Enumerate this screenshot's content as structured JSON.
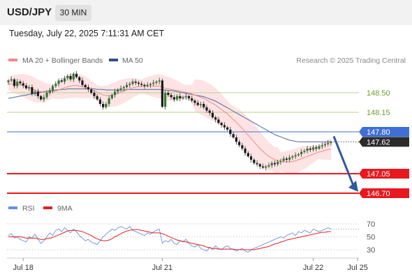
{
  "header": {
    "symbol": "USD/JPY",
    "timeframe": "30 MIN"
  },
  "datetime": "Tuesday, July 22, 2025 7:11:31 AM CET",
  "legend": {
    "ma20": "MA 20 + Bollinger Bands",
    "ma50": "MA 50",
    "research": "Research © 2025 Trading Central",
    "rsi": "RSI",
    "rsi_ma": "9MA"
  },
  "colors": {
    "ma20": "#f08a8a",
    "ma50": "#4a6aa0",
    "band_fill": "#fde3e3",
    "resistance": "#b5d68a",
    "current": "#3d6fd6",
    "support": "#e8191e",
    "candle": "#2e7a2e",
    "rsi": "#6a8ee0",
    "rsi_ma": "#e02020",
    "arrow": "#2f5a9e"
  },
  "chart_data": {
    "type": "candlestick",
    "instrument": "USD/JPY",
    "timeframe": "30 MIN",
    "ylim": [
      146.35,
      149.15
    ],
    "x_ticks": [
      "Jul 18",
      "Jul 21",
      "Jul 22",
      "Jul 25"
    ],
    "x_tick_index": [
      5,
      52,
      103,
      118
    ],
    "levels": {
      "resistance": [
        148.5,
        148.15
      ],
      "current": 147.8,
      "last_price": 147.62,
      "support": [
        147.05,
        146.7
      ]
    },
    "level_labels": [
      "148.50",
      "148.15",
      "147.80",
      "147.62",
      "147.05",
      "146.70"
    ],
    "close": [
      148.72,
      148.74,
      148.62,
      148.7,
      148.67,
      148.63,
      148.58,
      148.6,
      148.48,
      148.52,
      148.44,
      148.38,
      148.42,
      148.5,
      148.54,
      148.62,
      148.66,
      148.72,
      148.7,
      148.76,
      148.8,
      148.74,
      148.84,
      148.78,
      148.72,
      148.64,
      148.6,
      148.56,
      148.5,
      148.44,
      148.38,
      148.3,
      148.24,
      148.3,
      148.4,
      148.46,
      148.52,
      148.56,
      148.58,
      148.6,
      148.64,
      148.66,
      148.7,
      148.68,
      148.66,
      148.64,
      148.62,
      148.64,
      148.66,
      148.68,
      148.7,
      148.72,
      148.25,
      148.5,
      148.46,
      148.42,
      148.38,
      148.44,
      148.4,
      148.42,
      148.44,
      148.4,
      148.36,
      148.32,
      148.28,
      148.3,
      148.24,
      148.18,
      148.14,
      148.06,
      148.02,
      147.96,
      147.92,
      147.88,
      147.84,
      147.76,
      147.7,
      147.62,
      147.56,
      147.5,
      147.42,
      147.36,
      147.3,
      147.24,
      147.22,
      147.18,
      147.16,
      147.18,
      147.2,
      147.24,
      147.22,
      147.26,
      147.28,
      147.32,
      147.3,
      147.34,
      147.36,
      147.38,
      147.4,
      147.44,
      147.46,
      147.5,
      147.48,
      147.52,
      147.5,
      147.54,
      147.56,
      147.58,
      147.6,
      147.62
    ],
    "ma20": [
      148.66,
      148.66,
      148.66,
      148.65,
      148.64,
      148.63,
      148.61,
      148.59,
      148.57,
      148.55,
      148.53,
      148.52,
      148.51,
      148.51,
      148.51,
      148.52,
      148.53,
      148.55,
      148.57,
      148.59,
      148.61,
      148.62,
      148.63,
      148.63,
      148.62,
      148.61,
      148.6,
      148.58,
      148.56,
      148.54,
      148.51,
      148.48,
      148.46,
      148.45,
      148.45,
      148.46,
      148.47,
      148.49,
      148.51,
      148.53,
      148.55,
      148.57,
      148.59,
      148.6,
      148.61,
      148.61,
      148.62,
      148.62,
      148.62,
      148.62,
      148.62,
      148.62,
      148.6,
      148.58,
      148.57,
      148.56,
      148.55,
      148.54,
      148.53,
      148.52,
      148.51,
      148.5,
      148.48,
      148.46,
      148.44,
      148.42,
      148.4,
      148.37,
      148.34,
      148.31,
      148.28,
      148.24,
      148.2,
      148.16,
      148.12,
      148.07,
      148.02,
      147.97,
      147.92,
      147.86,
      147.8,
      147.74,
      147.68,
      147.62,
      147.56,
      147.5,
      147.45,
      147.4,
      147.36,
      147.33,
      147.3,
      147.28,
      147.27,
      147.26,
      147.26,
      147.26,
      147.27,
      147.28,
      147.3,
      147.32,
      147.34,
      147.36,
      147.38,
      147.4,
      147.42,
      147.44,
      147.45,
      147.47,
      147.48,
      147.49
    ],
    "ma50": [
      148.4,
      148.41,
      148.42,
      148.43,
      148.44,
      148.45,
      148.46,
      148.47,
      148.48,
      148.49,
      148.5,
      148.51,
      148.52,
      148.53,
      148.54,
      148.54,
      148.55,
      148.55,
      148.56,
      148.56,
      148.57,
      148.57,
      148.57,
      148.57,
      148.57,
      148.57,
      148.57,
      148.57,
      148.57,
      148.57,
      148.56,
      148.56,
      148.56,
      148.55,
      148.55,
      148.55,
      148.55,
      148.55,
      148.55,
      148.55,
      148.56,
      148.56,
      148.56,
      148.56,
      148.56,
      148.56,
      148.56,
      148.56,
      148.56,
      148.56,
      148.56,
      148.56,
      148.55,
      148.55,
      148.54,
      148.54,
      148.53,
      148.52,
      148.51,
      148.5,
      148.49,
      148.48,
      148.47,
      148.46,
      148.45,
      148.44,
      148.43,
      148.41,
      148.39,
      148.37,
      148.35,
      148.32,
      148.29,
      148.26,
      148.23,
      148.2,
      148.17,
      148.14,
      148.11,
      148.08,
      148.05,
      148.02,
      147.99,
      147.96,
      147.93,
      147.9,
      147.87,
      147.84,
      147.81,
      147.78,
      147.75,
      147.73,
      147.71,
      147.69,
      147.67,
      147.65,
      147.64,
      147.63,
      147.62,
      147.62,
      147.62,
      147.62,
      147.62,
      147.62,
      147.62,
      147.62,
      147.62,
      147.62,
      147.62,
      147.62
    ],
    "rsi": {
      "ylim": [
        20,
        80
      ],
      "ticks": [
        70,
        50,
        30
      ],
      "tick_labels": [
        "70",
        "50",
        "30"
      ],
      "rsi": [
        52,
        55,
        48,
        50,
        46,
        44,
        42,
        50,
        48,
        54,
        46,
        40,
        44,
        50,
        56,
        52,
        60,
        62,
        58,
        64,
        60,
        56,
        62,
        58,
        52,
        48,
        44,
        46,
        42,
        40,
        38,
        44,
        50,
        54,
        58,
        62,
        60,
        64,
        66,
        64,
        62,
        66,
        60,
        58,
        56,
        54,
        52,
        56,
        54,
        58,
        60,
        62,
        40,
        44,
        42,
        46,
        40,
        38,
        44,
        42,
        46,
        40,
        36,
        34,
        38,
        32,
        30,
        28,
        34,
        30,
        36,
        32,
        30,
        34,
        36,
        32,
        30,
        28,
        30,
        32,
        28,
        26,
        30,
        32,
        34,
        36,
        38,
        40,
        42,
        44,
        46,
        48,
        50,
        48,
        52,
        54,
        56,
        52,
        58,
        56,
        60,
        58,
        56,
        62,
        60,
        58,
        60,
        62,
        64,
        62
      ],
      "ma9": [
        50,
        50,
        50,
        50,
        50,
        49,
        48,
        48,
        48,
        48,
        47,
        46,
        46,
        47,
        48,
        49,
        51,
        53,
        55,
        57,
        59,
        60,
        60,
        60,
        59,
        58,
        56,
        54,
        52,
        49,
        47,
        45,
        44,
        44,
        45,
        47,
        50,
        52,
        55,
        57,
        59,
        60,
        61,
        61,
        61,
        60,
        59,
        58,
        57,
        56,
        56,
        56,
        55,
        53,
        51,
        49,
        47,
        45,
        44,
        43,
        42,
        41,
        40,
        39,
        38,
        37,
        36,
        34,
        33,
        32,
        32,
        31,
        31,
        31,
        31,
        31,
        31,
        30,
        30,
        30,
        30,
        30,
        30,
        30,
        31,
        32,
        33,
        34,
        35,
        37,
        39,
        40,
        42,
        43,
        45,
        46,
        47,
        48,
        49,
        50,
        51,
        52,
        53,
        54,
        55,
        56,
        57,
        57,
        58,
        58
      ]
    },
    "forecast_arrow": {
      "from": 147.72,
      "to": 146.7
    }
  }
}
